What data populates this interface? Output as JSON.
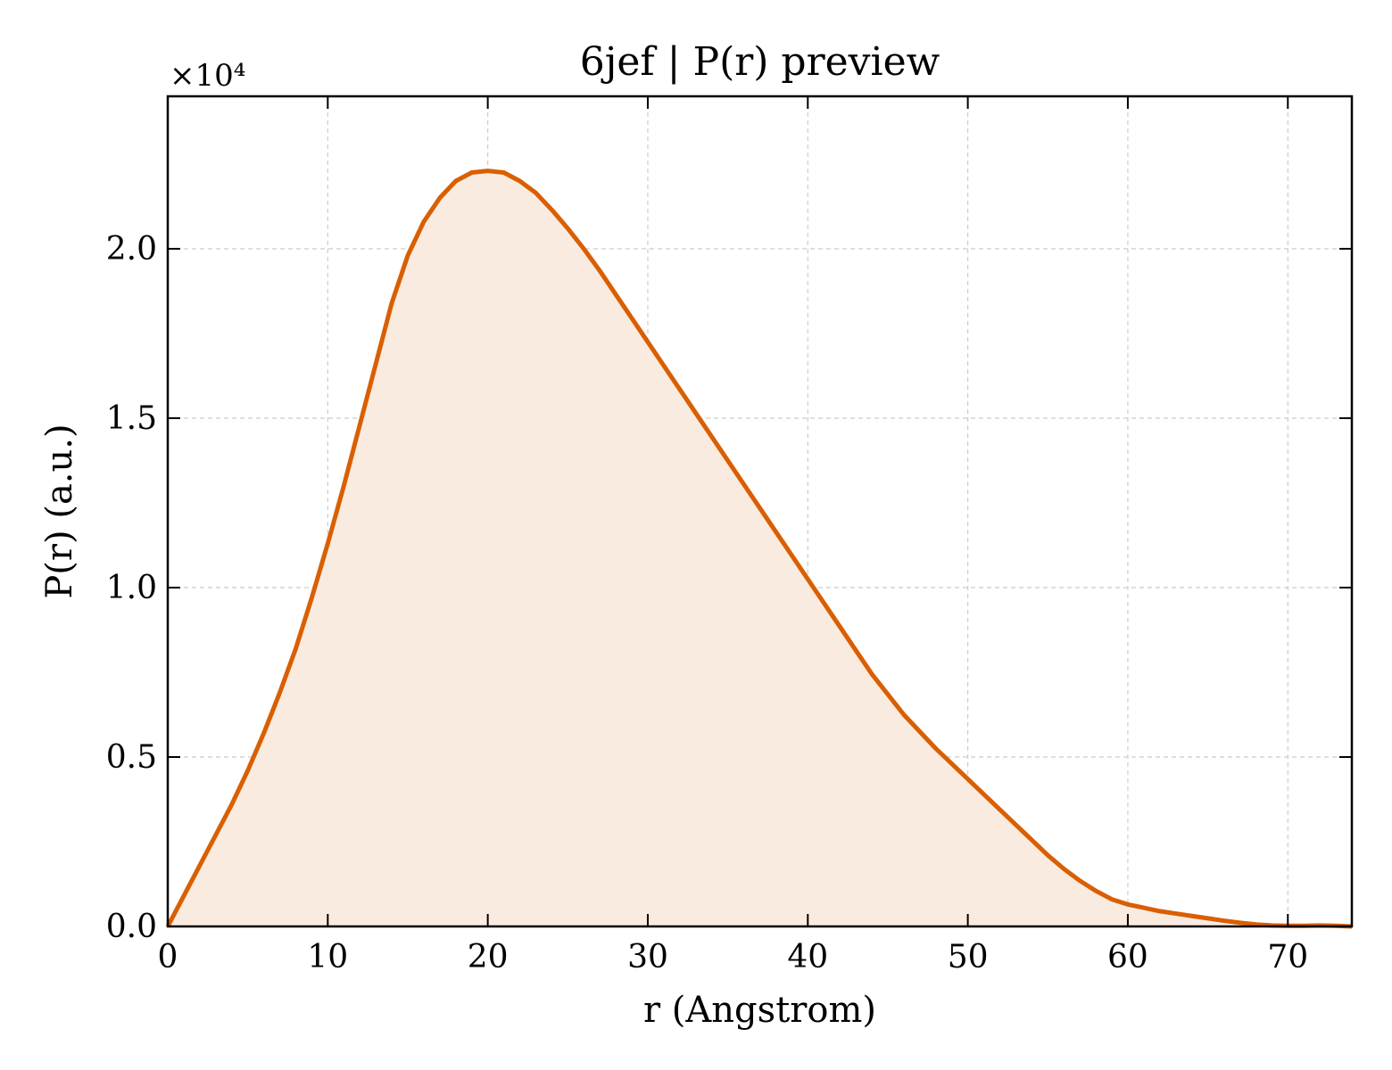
{
  "chart_data": {
    "type": "area",
    "title": "6jef | P(r) preview",
    "xlabel": "r (Angstrom)",
    "ylabel": "P(r) (a.u.)",
    "y_multiplier_label": "×10⁴",
    "xlim": [
      0,
      74
    ],
    "ylim": [
      0,
      2.45
    ],
    "x_ticks": [
      0,
      10,
      20,
      30,
      40,
      50,
      60,
      70
    ],
    "x_tick_labels": [
      "0",
      "10",
      "20",
      "30",
      "40",
      "50",
      "60",
      "70"
    ],
    "y_ticks": [
      0,
      0.5,
      1.0,
      1.5,
      2.0
    ],
    "y_tick_labels": [
      "0.0",
      "0.5",
      "1.0",
      "1.5",
      "2.0"
    ],
    "grid": true,
    "colors": {
      "line": "#d95f02",
      "fill": "#f9ebe0"
    },
    "series": [
      {
        "x": [
          0,
          1,
          2,
          3,
          4,
          5,
          6,
          7,
          8,
          9,
          10,
          11,
          12,
          13,
          14,
          15,
          16,
          17,
          18,
          19,
          20,
          21,
          22,
          23,
          24,
          25,
          26,
          27,
          28,
          29,
          30,
          31,
          32,
          33,
          34,
          35,
          36,
          37,
          38,
          39,
          40,
          41,
          42,
          43,
          44,
          45,
          46,
          47,
          48,
          49,
          50,
          51,
          52,
          53,
          54,
          55,
          56,
          57,
          58,
          59,
          60,
          61,
          62,
          63,
          64,
          65,
          66,
          67,
          68,
          69,
          70,
          71,
          72,
          73,
          74
        ],
        "values": [
          0.0,
          0.09,
          0.18,
          0.27,
          0.36,
          0.46,
          0.57,
          0.69,
          0.82,
          0.97,
          1.13,
          1.3,
          1.48,
          1.66,
          1.84,
          1.98,
          2.08,
          2.15,
          2.2,
          2.225,
          2.23,
          2.225,
          2.2,
          2.165,
          2.115,
          2.06,
          2.0,
          1.935,
          1.865,
          1.795,
          1.725,
          1.655,
          1.585,
          1.515,
          1.445,
          1.375,
          1.305,
          1.235,
          1.165,
          1.095,
          1.025,
          0.955,
          0.885,
          0.815,
          0.745,
          0.685,
          0.625,
          0.575,
          0.525,
          0.48,
          0.435,
          0.39,
          0.345,
          0.3,
          0.255,
          0.21,
          0.17,
          0.135,
          0.105,
          0.08,
          0.065,
          0.055,
          0.045,
          0.038,
          0.031,
          0.024,
          0.017,
          0.011,
          0.006,
          0.003,
          0.002,
          0.002,
          0.003,
          0.002,
          0.0
        ]
      }
    ]
  }
}
